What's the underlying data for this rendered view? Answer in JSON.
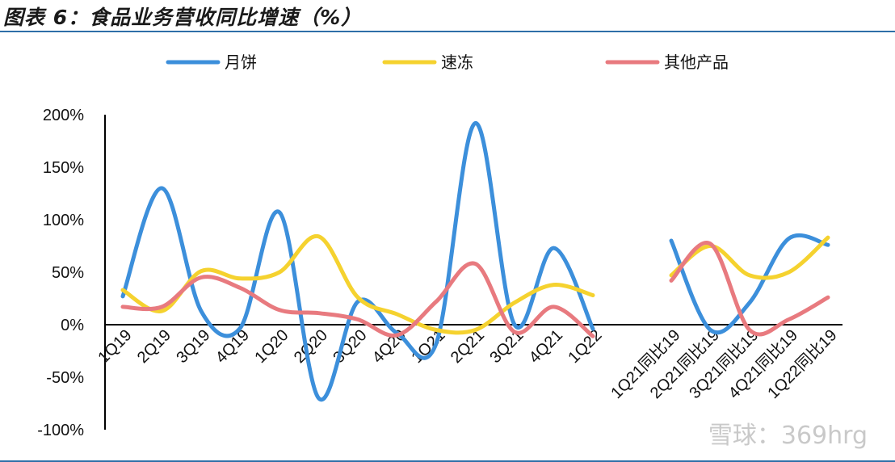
{
  "title": "图表 6：食品业务营收同比增速（%）",
  "watermark": "雪球：369hrg",
  "colors": {
    "月饼": "#3c8fdb",
    "速冻": "#f5d22f",
    "其他产品": "#e87a7f",
    "axis": "#000000",
    "rule": "#2e6fa8"
  },
  "chart_data": {
    "type": "line",
    "title": "食品业务营收同比增速（%）",
    "xlabel": "",
    "ylabel": "",
    "ylim": [
      -100,
      200
    ],
    "yticks": [
      -100,
      -50,
      0,
      50,
      100,
      150,
      200
    ],
    "ytick_labels": [
      "-100%",
      "-50%",
      "0%",
      "50%",
      "100%",
      "150%",
      "200%"
    ],
    "grid": false,
    "legend_position": "top",
    "categories": [
      "1Q19",
      "2Q19",
      "3Q19",
      "4Q19",
      "1Q20",
      "2Q20",
      "3Q20",
      "4Q20",
      "1Q21",
      "2Q21",
      "3Q21",
      "4Q21",
      "1Q22",
      "",
      "1Q21同比19",
      "2Q21同比19",
      "3Q21同比19",
      "4Q21同比19",
      "1Q22同比19"
    ],
    "series": [
      {
        "name": "月饼",
        "values": [
          27,
          130,
          13,
          -3,
          107,
          -70,
          22,
          -8,
          -18,
          192,
          0,
          73,
          -4,
          null,
          80,
          -5,
          21,
          82,
          76
        ]
      },
      {
        "name": "速冻",
        "values": [
          33,
          13,
          51,
          44,
          50,
          84,
          26,
          10,
          -5,
          -5,
          21,
          38,
          28,
          null,
          47,
          75,
          47,
          50,
          83
        ]
      },
      {
        "name": "其他产品",
        "values": [
          17,
          17,
          45,
          35,
          14,
          11,
          5,
          -10,
          22,
          58,
          -7,
          17,
          -11,
          null,
          42,
          77,
          -5,
          5,
          26
        ]
      }
    ]
  }
}
